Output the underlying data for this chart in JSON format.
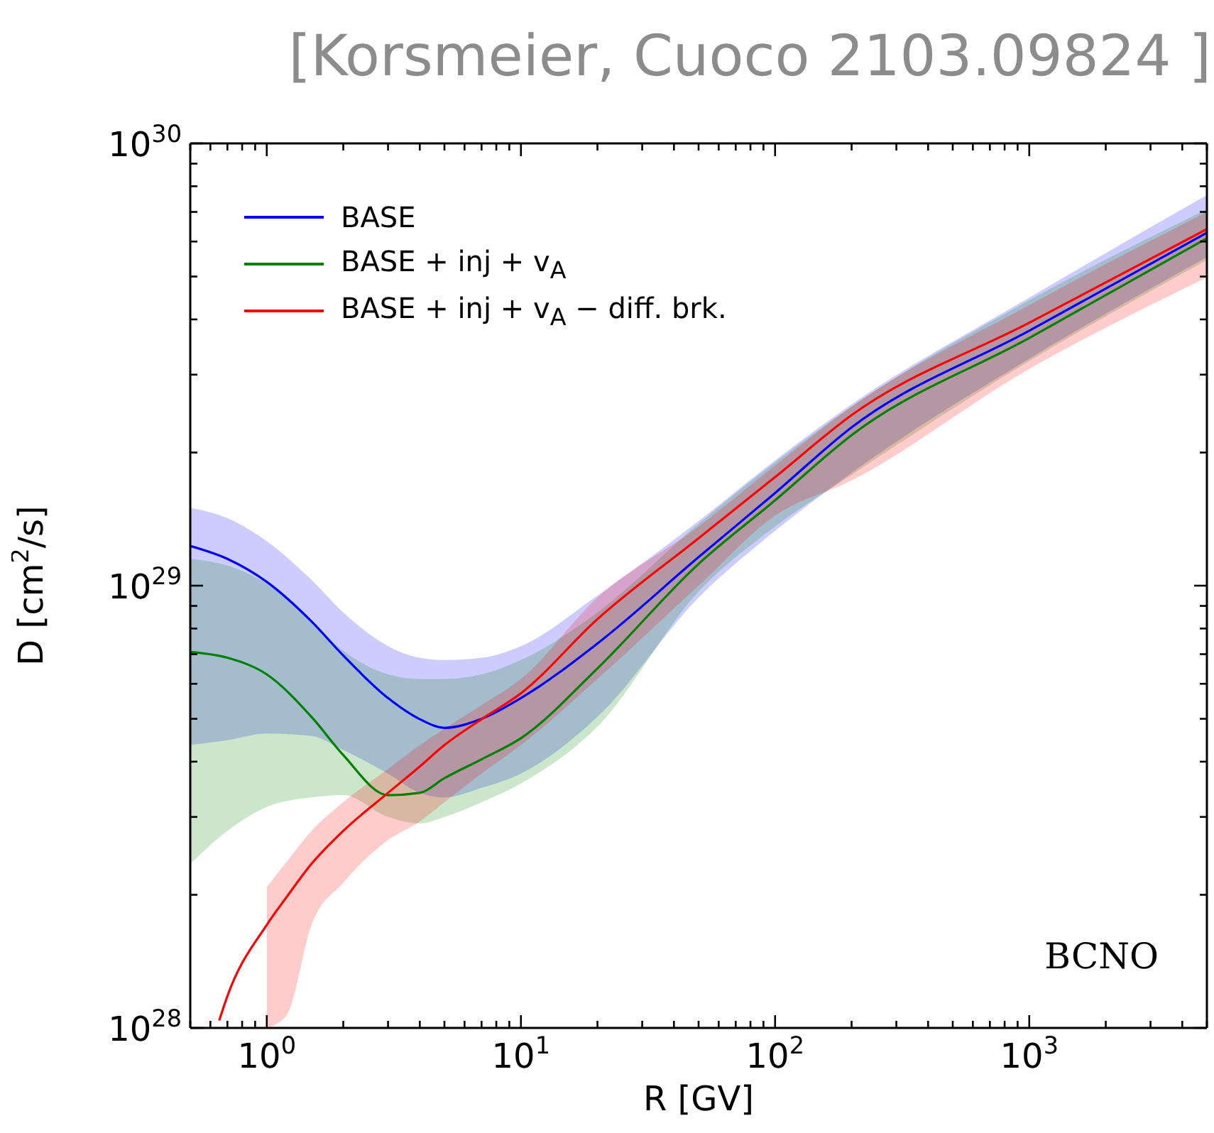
{
  "chart_data": {
    "type": "line",
    "annotations": [
      "[Korsmeier, Cuoco 2103.09824 ]",
      "BCNO"
    ],
    "xlabel": "R [GV]",
    "ylabel": "D [cm$^{2}$/s]",
    "log": "xy",
    "legend": "top left",
    "xlim": [
      0.5,
      5000
    ],
    "ylim": [
      1e+28,
      1e+30
    ],
    "xticks": [
      {
        "value": 0.5,
        "label": null
      },
      {
        "value": 0.6,
        "label": null
      },
      {
        "value": 0.7,
        "label": null
      },
      {
        "value": 0.8,
        "label": null
      },
      {
        "value": 0.9,
        "label": null
      },
      {
        "value": 1,
        "label": "10$^{0}$"
      },
      {
        "value": 2,
        "label": null
      },
      {
        "value": 3,
        "label": null
      },
      {
        "value": 4,
        "label": null
      },
      {
        "value": 5,
        "label": null
      },
      {
        "value": 6,
        "label": null
      },
      {
        "value": 7,
        "label": null
      },
      {
        "value": 8,
        "label": null
      },
      {
        "value": 9,
        "label": null
      },
      {
        "value": 10,
        "label": "10$^{1}$"
      },
      {
        "value": 20,
        "label": null
      },
      {
        "value": 30,
        "label": null
      },
      {
        "value": 40,
        "label": null
      },
      {
        "value": 50,
        "label": null
      },
      {
        "value": 60,
        "label": null
      },
      {
        "value": 70,
        "label": null
      },
      {
        "value": 80,
        "label": null
      },
      {
        "value": 90,
        "label": null
      },
      {
        "value": 100,
        "label": "10$^{2}$"
      },
      {
        "value": 200,
        "label": null
      },
      {
        "value": 300,
        "label": null
      },
      {
        "value": 400,
        "label": null
      },
      {
        "value": 500,
        "label": null
      },
      {
        "value": 600,
        "label": null
      },
      {
        "value": 700,
        "label": null
      },
      {
        "value": 800,
        "label": null
      },
      {
        "value": 900,
        "label": null
      },
      {
        "value": 1000,
        "label": "10$^{3}$"
      },
      {
        "value": 2000,
        "label": null
      },
      {
        "value": 3000,
        "label": null
      },
      {
        "value": 4000,
        "label": null
      },
      {
        "value": 5000,
        "label": null
      }
    ],
    "yticks": [
      {
        "value": 1e+28,
        "label": "10$^{28}$"
      },
      {
        "value": 2e+28,
        "label": null
      },
      {
        "value": 3e+28,
        "label": null
      },
      {
        "value": 4e+28,
        "label": null
      },
      {
        "value": 5e+28,
        "label": null
      },
      {
        "value": 6e+28,
        "label": null
      },
      {
        "value": 7e+28,
        "label": null
      },
      {
        "value": 8e+28,
        "label": null
      },
      {
        "value": 9e+28,
        "label": null
      },
      {
        "value": 1e+29,
        "label": "10$^{29}$"
      },
      {
        "value": 2e+29,
        "label": null
      },
      {
        "value": 3e+29,
        "label": null
      },
      {
        "value": 4e+29,
        "label": null
      },
      {
        "value": 5e+29,
        "label": null
      },
      {
        "value": 6e+29,
        "label": null
      },
      {
        "value": 7e+29,
        "label": null
      },
      {
        "value": 8e+29,
        "label": null
      },
      {
        "value": 9e+29,
        "label": null
      },
      {
        "value": 1e+30,
        "label": "10$^{30}$"
      }
    ],
    "x": [
      0.5,
      0.7,
      1,
      1.5,
      2,
      3,
      4,
      5,
      7,
      10,
      20,
      50,
      100,
      200,
      1000,
      5000
    ],
    "series": [
      {
        "name": "BASE",
        "color": "#0000ff",
        "values": [
          1.23e+29,
          1.15e+29,
          1.02e+29,
          8.3e+28,
          6.95e+28,
          5.57e+28,
          4.99e+28,
          4.77e+28,
          5e+28,
          5.57e+28,
          7.4e+28,
          1.16e+29,
          1.62e+29,
          2.28e+29,
          3.77e+29,
          6.28e+29
        ],
        "upper": [
          1.5e+29,
          1.42e+29,
          1.26e+29,
          1.03e+29,
          8.7e+28,
          7.3e+28,
          6.87e+28,
          6.79e+28,
          6.87e+28,
          7.3e+28,
          9.5e+28,
          1.4e+29,
          1.92e+29,
          2.57e+29,
          4.48e+29,
          7.64e+29
        ],
        "lower": [
          4.36e+28,
          4.47e+28,
          4.63e+28,
          4.57e+28,
          4.25e+28,
          3.76e+28,
          3.4e+28,
          3.32e+28,
          3.49e+28,
          3.76e+28,
          5.05e+28,
          9.4e+28,
          1.33e+29,
          1.8e+29,
          3.26e+29,
          5.53e+29
        ]
      },
      {
        "name": "BASE + inj + v$_{A}$",
        "color": "#008000",
        "values": [
          7.08e+28,
          6.87e+28,
          6.3e+28,
          5.05e+28,
          4.14e+28,
          3.36e+28,
          3.4e+28,
          3.67e+28,
          4.05e+28,
          4.52e+28,
          6.5e+28,
          1.12e+29,
          1.56e+29,
          2.19e+29,
          3.63e+29,
          6.1e+29
        ],
        "upper": [
          1.15e+29,
          1.11e+29,
          1.01e+29,
          8.3e+28,
          7.13e+28,
          6.3e+28,
          6.15e+28,
          6.15e+28,
          6.3e+28,
          6.79e+28,
          8.7e+28,
          1.38e+29,
          1.9e+29,
          2.54e+29,
          4.42e+29,
          7.1e+29
        ],
        "lower": [
          2.35e+28,
          2.79e+28,
          3.16e+28,
          3.32e+28,
          3.36e+28,
          3e+28,
          2.9e+28,
          3e+28,
          3.24e+28,
          3.57e+28,
          4.8e+28,
          9.7e+28,
          1.36e+29,
          1.78e+29,
          3.22e+29,
          5.45e+29
        ]
      },
      {
        "name": "BASE + inj + v$_{A}$ − diff. brk.",
        "color": "#ff0000",
        "x": [
          0.65,
          0.7,
          1,
          1.2,
          1.5,
          2,
          3,
          4,
          5,
          7,
          10,
          20,
          50,
          100,
          200,
          1000,
          5000
        ],
        "values": [
          1.04e+28,
          1.18e+28,
          1.71e+28,
          1.98e+28,
          2.35e+28,
          2.79e+28,
          3.4e+28,
          3.9e+28,
          4.36e+28,
          4.99e+28,
          5.71e+28,
          8.4e+28,
          1.28e+29,
          1.76e+29,
          2.43e+29,
          3.93e+29,
          6.4e+29
        ],
        "upper": [
          null,
          null,
          2.08e+28,
          2.38e+28,
          2.79e+28,
          3.24e+28,
          3.85e+28,
          4.36e+28,
          4.75e+28,
          5.37e+28,
          6.15e+28,
          9.4e+28,
          1.36e+29,
          1.87e+29,
          2.54e+29,
          4.31e+29,
          7e+29
        ],
        "lower": [
          null,
          null,
          1e+28,
          1.07e+28,
          1.71e+28,
          2.13e+28,
          2.66e+28,
          2.93e+28,
          3.24e+28,
          3.76e+28,
          4.36e+28,
          6.15e+28,
          1e+29,
          1.44e+29,
          1.73e+29,
          3.09e+29,
          4.98e+29
        ]
      }
    ]
  }
}
